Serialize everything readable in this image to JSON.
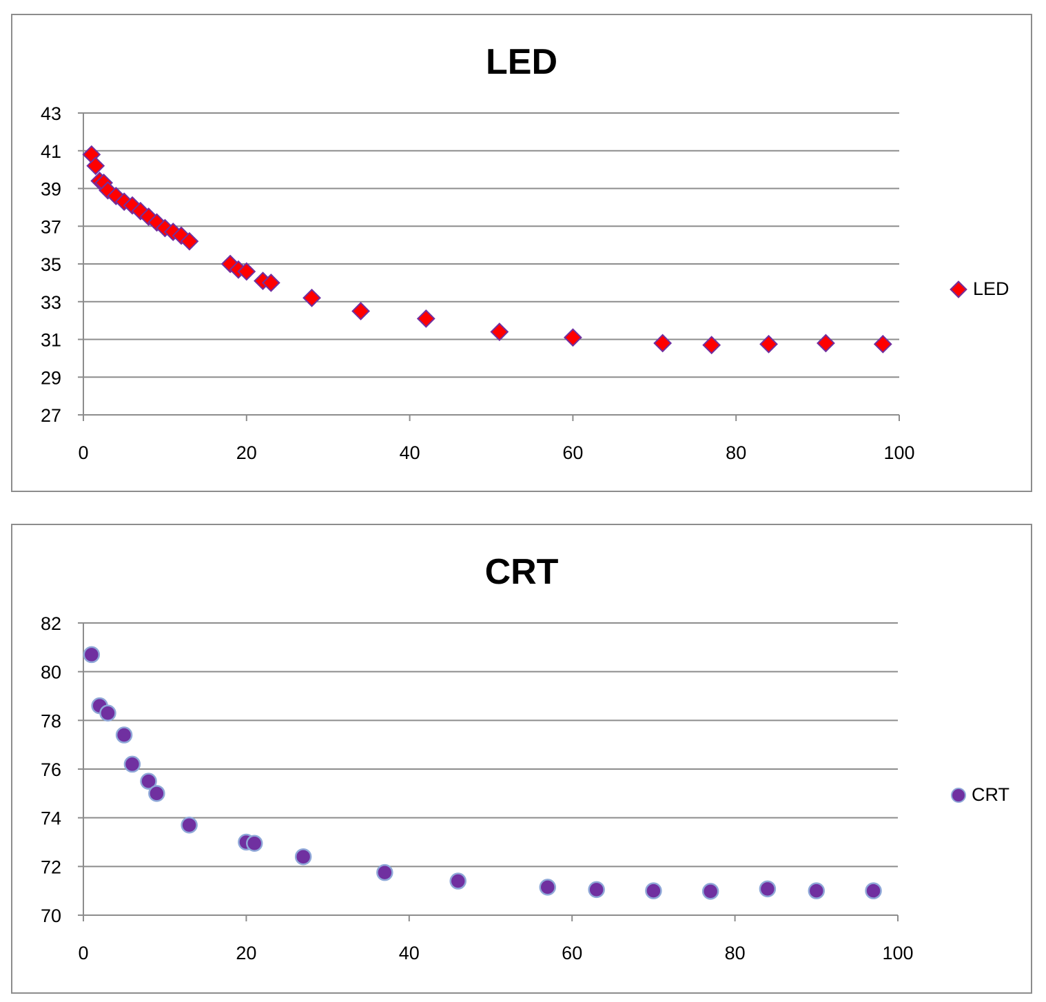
{
  "charts": [
    {
      "id": "led",
      "type": "scatter",
      "title": "LED",
      "legend": "LED",
      "marker": "diamond",
      "colors": {
        "fill": "#ff0000",
        "stroke": "#7030a0"
      },
      "xlim": [
        0,
        100
      ],
      "ylim": [
        27,
        43
      ],
      "xticks": [
        0,
        20,
        40,
        60,
        80,
        100
      ],
      "yticks": [
        27,
        29,
        31,
        33,
        35,
        37,
        39,
        41,
        43
      ],
      "x": [
        1,
        1.5,
        2,
        2.5,
        3,
        4,
        5,
        6,
        7,
        8,
        9,
        10,
        11,
        12,
        13,
        18,
        19,
        20,
        22,
        23,
        28,
        34,
        42,
        51,
        60,
        71,
        77,
        84,
        91,
        98
      ],
      "y": [
        40.8,
        40.2,
        39.4,
        39.3,
        38.9,
        38.6,
        38.3,
        38.1,
        37.8,
        37.5,
        37.2,
        36.9,
        36.7,
        36.5,
        36.2,
        35.0,
        34.7,
        34.6,
        34.1,
        34.0,
        33.2,
        32.5,
        32.1,
        31.4,
        31.1,
        30.8,
        30.7,
        30.75,
        30.8,
        30.75
      ]
    },
    {
      "id": "crt",
      "type": "scatter",
      "title": "CRT",
      "legend": "CRT",
      "marker": "circle",
      "colors": {
        "fill": "#7030a0",
        "stroke": "#8fa8d8"
      },
      "xlim": [
        0,
        100
      ],
      "ylim": [
        70,
        82
      ],
      "xticks": [
        0,
        20,
        40,
        60,
        80,
        100
      ],
      "yticks": [
        70,
        72,
        74,
        76,
        78,
        80,
        82
      ],
      "x": [
        1,
        2,
        3,
        5,
        6,
        8,
        9,
        13,
        20,
        21,
        27,
        37,
        46,
        57,
        63,
        70,
        77,
        84,
        90,
        97
      ],
      "y": [
        80.7,
        78.6,
        78.3,
        77.4,
        76.2,
        75.5,
        75.0,
        73.7,
        73.0,
        72.95,
        72.4,
        71.75,
        71.4,
        71.15,
        71.05,
        71.0,
        70.98,
        71.08,
        71.0,
        71.0
      ]
    }
  ],
  "chart_data": [
    {
      "type": "scatter",
      "title": "LED",
      "series": [
        {
          "name": "LED",
          "x": [
            1,
            1.5,
            2,
            2.5,
            3,
            4,
            5,
            6,
            7,
            8,
            9,
            10,
            11,
            12,
            13,
            18,
            19,
            20,
            22,
            23,
            28,
            34,
            42,
            51,
            60,
            71,
            77,
            84,
            91,
            98
          ],
          "y": [
            40.8,
            40.2,
            39.4,
            39.3,
            38.9,
            38.6,
            38.3,
            38.1,
            37.8,
            37.5,
            37.2,
            36.9,
            36.7,
            36.5,
            36.2,
            35.0,
            34.7,
            34.6,
            34.1,
            34.0,
            33.2,
            32.5,
            32.1,
            31.4,
            31.1,
            30.8,
            30.7,
            30.75,
            30.8,
            30.75
          ]
        }
      ],
      "xlim": [
        0,
        100
      ],
      "ylim": [
        27,
        43
      ],
      "grid": "horizontal",
      "legend": "right",
      "xlabel": "",
      "ylabel": ""
    },
    {
      "type": "scatter",
      "title": "CRT",
      "series": [
        {
          "name": "CRT",
          "x": [
            1,
            2,
            3,
            5,
            6,
            8,
            9,
            13,
            20,
            21,
            27,
            37,
            46,
            57,
            63,
            70,
            77,
            84,
            90,
            97
          ],
          "y": [
            80.7,
            78.6,
            78.3,
            77.4,
            76.2,
            75.5,
            75.0,
            73.7,
            73.0,
            72.95,
            72.4,
            71.75,
            71.4,
            71.15,
            71.05,
            71.0,
            70.98,
            71.08,
            71.0,
            71.0
          ]
        }
      ],
      "xlim": [
        0,
        100
      ],
      "ylim": [
        70,
        82
      ],
      "grid": "horizontal",
      "legend": "right",
      "xlabel": "",
      "ylabel": ""
    }
  ]
}
